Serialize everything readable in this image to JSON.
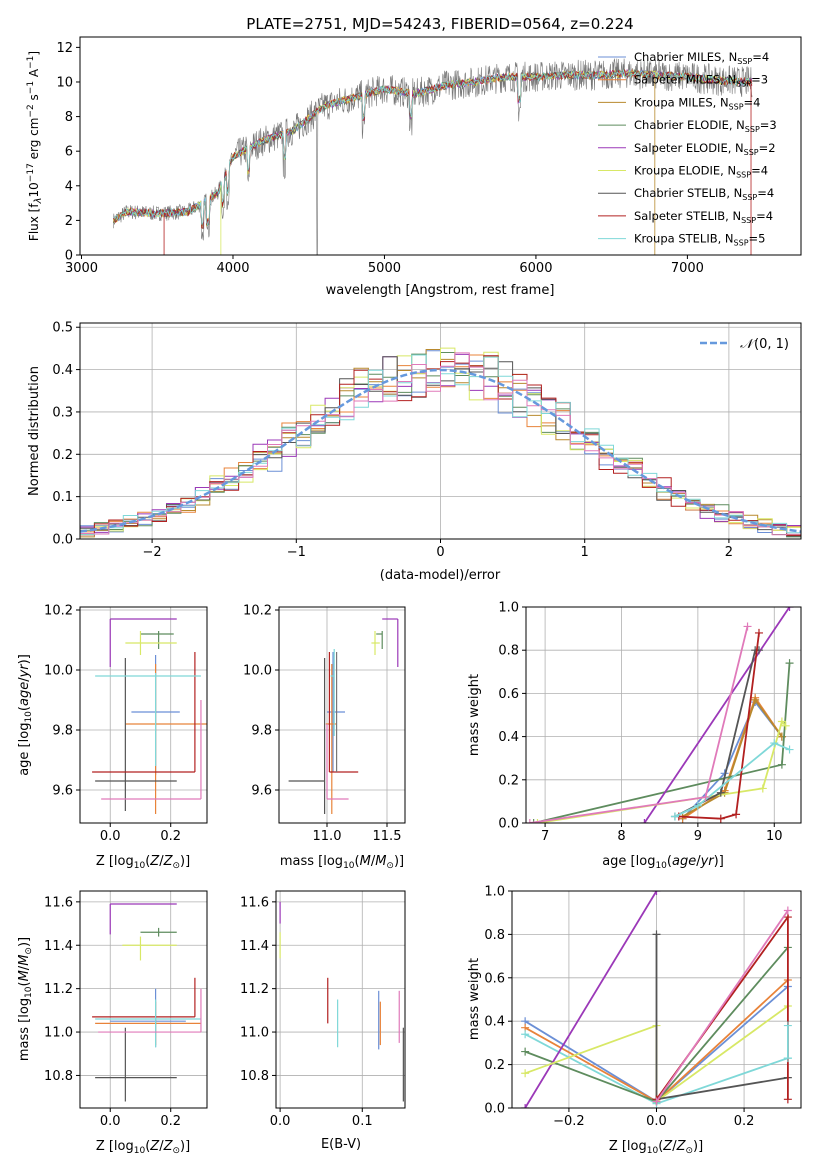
{
  "colors": {
    "chabrier_miles": "#6b8fd6",
    "salpeter_miles": "#e8833a",
    "kroupa_miles": "#b8892e",
    "chabrier_elodie": "#5e8c5e",
    "salpeter_elodie": "#9b38b8",
    "kroupa_elodie": "#d8e866",
    "chabrier_stelib": "#555555",
    "salpeter_stelib": "#b22020",
    "kroupa_stelib": "#7fd8d8",
    "pink": "#e07aba",
    "gray": "#777777",
    "normal": "#6699dd",
    "grid": "#b0b0b0"
  },
  "chart_data": [
    {
      "id": "spectrum",
      "type": "line",
      "title": "PLATE=2751, MJD=54243, FIBERID=0564, z=0.224",
      "xlabel": "wavelength [Angstrom, rest frame]",
      "ylabel": "Flux [f",
      "ylabel_tail": "10",
      "xlim": [
        2990,
        7750
      ],
      "ylim": [
        0,
        12.6
      ],
      "xticks": [
        "3000",
        "4000",
        "5000",
        "6000",
        "7000"
      ],
      "yticks": [
        "0",
        "2",
        "4",
        "6",
        "8",
        "10",
        "12"
      ],
      "legend_position": "upper right",
      "legend": [
        {
          "label": "Chabrier MILES, N",
          "n": "4",
          "color_key": "chabrier_miles"
        },
        {
          "label": "Salpeter MILES, N",
          "n": "3",
          "color_key": "salpeter_miles"
        },
        {
          "label": "Kroupa MILES, N",
          "n": "4",
          "color_key": "kroupa_miles"
        },
        {
          "label": "Chabrier ELODIE, N",
          "n": "3",
          "color_key": "chabrier_elodie"
        },
        {
          "label": "Salpeter ELODIE, N",
          "n": "2",
          "color_key": "salpeter_elodie"
        },
        {
          "label": "Kroupa ELODIE, N",
          "n": "4",
          "color_key": "kroupa_elodie"
        },
        {
          "label": "Chabrier STELIB, N",
          "n": "4",
          "color_key": "chabrier_stelib"
        },
        {
          "label": "Salpeter STELIB, N",
          "n": "4",
          "color_key": "salpeter_stelib"
        },
        {
          "label": "Kroupa STELIB, N",
          "n": "5",
          "color_key": "kroupa_stelib"
        }
      ],
      "continuum": [
        [
          3210,
          2.0
        ],
        [
          3300,
          2.5
        ],
        [
          3500,
          2.4
        ],
        [
          3700,
          2.5
        ],
        [
          3800,
          3.0
        ],
        [
          3900,
          3.6
        ],
        [
          4000,
          5.7
        ],
        [
          4200,
          6.6
        ],
        [
          4400,
          7.2
        ],
        [
          4600,
          8.6
        ],
        [
          4800,
          9.1
        ],
        [
          5000,
          9.6
        ],
        [
          5200,
          9.3
        ],
        [
          5400,
          9.8
        ],
        [
          5600,
          10.0
        ],
        [
          5800,
          10.3
        ],
        [
          6000,
          10.3
        ],
        [
          6200,
          10.4
        ],
        [
          6400,
          10.4
        ],
        [
          6600,
          10.5
        ],
        [
          6800,
          10.4
        ],
        [
          7000,
          10.3
        ],
        [
          7200,
          10.1
        ],
        [
          7400,
          10.0
        ]
      ]
    },
    {
      "id": "residuals",
      "type": "step",
      "xlabel": "(data-model)/error",
      "ylabel": "Normed distribution",
      "xlim": [
        -2.5,
        2.5
      ],
      "ylim": [
        0,
        0.51
      ],
      "xticks": [
        "−2",
        "−1",
        "0",
        "1",
        "2"
      ],
      "yticks": [
        "0.0",
        "0.1",
        "0.2",
        "0.3",
        "0.4",
        "0.5"
      ],
      "legend_label": "N(0,1)",
      "legend_position": "upper right",
      "bin_width": 0.1
    },
    {
      "id": "age_vs_Z",
      "type": "errorbar",
      "xlabel": "Z [log",
      "ylabel": "age  [log",
      "xlim": [
        -0.1,
        0.32
      ],
      "ylim": [
        9.49,
        10.21
      ],
      "xticks": [
        "0.0",
        "0.2"
      ],
      "yticks": [
        "9.6",
        "9.8",
        "10.0",
        "10.2"
      ],
      "points": [
        {
          "x": 0.15,
          "xerr": [
            0.08,
            0.08
          ],
          "y": 9.86,
          "yerr": [
            0.21,
            0.19
          ],
          "c": "chabrier_miles"
        },
        {
          "x": 0.15,
          "xerr": [
            0.1,
            0.17
          ],
          "y": 9.82,
          "yerr": [
            0.3,
            0.2
          ],
          "c": "salpeter_miles"
        },
        {
          "x": 0.15,
          "xerr": [
            0.0,
            0.0
          ],
          "y": 10.1,
          "yerr": [
            0.0,
            0.0
          ],
          "c": "kroupa_miles"
        },
        {
          "x": 0.16,
          "xerr": [
            0.06,
            0.05
          ],
          "y": 10.12,
          "yerr": [
            0.05,
            0.01
          ],
          "c": "chabrier_elodie"
        },
        {
          "x": 0.0,
          "xerr": [
            0.0,
            0.22
          ],
          "y": 10.17,
          "yerr": [
            0.16,
            0.0
          ],
          "c": "salpeter_elodie"
        },
        {
          "x": 0.1,
          "xerr": [
            0.05,
            0.12
          ],
          "y": 10.09,
          "yerr": [
            0.04,
            0.04
          ],
          "c": "kroupa_elodie"
        },
        {
          "x": 0.05,
          "xerr": [
            0.1,
            0.17
          ],
          "y": 9.63,
          "yerr": [
            0.1,
            0.41
          ],
          "c": "chabrier_stelib"
        },
        {
          "x": 0.28,
          "xerr": [
            0.34,
            0.0
          ],
          "y": 9.66,
          "yerr": [
            0.0,
            0.4
          ],
          "c": "salpeter_stelib"
        },
        {
          "x": 0.15,
          "xerr": [
            0.2,
            0.15
          ],
          "y": 9.98,
          "yerr": [
            0.3,
            0.01
          ],
          "c": "kroupa_stelib"
        },
        {
          "x": 0.3,
          "xerr": [
            0.33,
            0.0
          ],
          "y": 9.57,
          "yerr": [
            0.0,
            0.33
          ],
          "c": "pink"
        }
      ]
    },
    {
      "id": "age_vs_mass",
      "type": "errorbar",
      "xlabel": "mass [log",
      "ylabel": "",
      "xlim": [
        10.6,
        11.65
      ],
      "ylim": [
        9.49,
        10.21
      ],
      "xticks": [
        "11.0",
        "11.5"
      ],
      "yticks": [
        "9.6",
        "9.8",
        "10.0",
        "10.2"
      ],
      "points": [
        {
          "x": 11.05,
          "xerr": [
            0.05,
            0.1
          ],
          "y": 9.86,
          "yerr": [
            0.2,
            0.2
          ],
          "c": "chabrier_miles"
        },
        {
          "x": 11.04,
          "xerr": [
            0.05,
            0.04
          ],
          "y": 9.82,
          "yerr": [
            0.3,
            0.2
          ],
          "c": "salpeter_miles"
        },
        {
          "x": 11.06,
          "xerr": [
            0.03,
            0.0
          ],
          "y": 9.98,
          "yerr": [
            0.2,
            0.09
          ],
          "c": "kroupa_stelib"
        },
        {
          "x": 11.46,
          "xerr": [
            0.05,
            0.0
          ],
          "y": 10.12,
          "yerr": [
            0.05,
            0.01
          ],
          "c": "chabrier_elodie"
        },
        {
          "x": 11.59,
          "xerr": [
            0.13,
            0.0
          ],
          "y": 10.17,
          "yerr": [
            0.16,
            0.0
          ],
          "c": "salpeter_elodie"
        },
        {
          "x": 11.4,
          "xerr": [
            0.03,
            0.04
          ],
          "y": 10.09,
          "yerr": [
            0.04,
            0.04
          ],
          "c": "kroupa_elodie"
        },
        {
          "x": 10.98,
          "xerr": [
            0.3,
            0.0
          ],
          "y": 9.63,
          "yerr": [
            0.11,
            0.41
          ],
          "c": "chabrier_stelib"
        },
        {
          "x": 11.02,
          "xerr": [
            0.0,
            0.24
          ],
          "y": 9.66,
          "yerr": [
            0.0,
            0.4
          ],
          "c": "salpeter_stelib"
        },
        {
          "x": 11.0,
          "xerr": [
            0.0,
            0.18
          ],
          "y": 9.57,
          "yerr": [
            0.0,
            0.25
          ],
          "c": "pink"
        },
        {
          "x": 11.08,
          "xerr": [
            0.0,
            0.0
          ],
          "y": 9.86,
          "yerr": [
            0.2,
            0.2
          ],
          "c": "gray"
        }
      ]
    },
    {
      "id": "mass_weight_vs_age",
      "type": "line",
      "xlabel": "age  [log",
      "ylabel": "mass weight",
      "xlim": [
        6.75,
        10.35
      ],
      "ylim": [
        0,
        1.0
      ],
      "xticks": [
        "7",
        "8",
        "9",
        "10"
      ],
      "yticks": [
        "0.0",
        "0.2",
        "0.4",
        "0.6",
        "0.8",
        "1.0"
      ],
      "series": [
        {
          "c": "chabrier_miles",
          "x": [
            8.8,
            9.35,
            9.75,
            10.1
          ],
          "y": [
            0.02,
            0.23,
            0.56,
            0.4
          ]
        },
        {
          "c": "salpeter_miles",
          "x": [
            8.8,
            9.35,
            9.75,
            10.1
          ],
          "y": [
            0.02,
            0.15,
            0.58,
            0.4
          ]
        },
        {
          "c": "kroupa_miles",
          "x": [
            8.8,
            9.35,
            9.75,
            10.1
          ],
          "y": [
            0.03,
            0.14,
            0.57,
            0.4
          ]
        },
        {
          "c": "chabrier_elodie",
          "x": [
            6.85,
            10.1,
            10.2
          ],
          "y": [
            0.0,
            0.27,
            0.74
          ]
        },
        {
          "c": "salpeter_elodie",
          "x": [
            8.3,
            10.2
          ],
          "y": [
            0.0,
            1.0
          ]
        },
        {
          "c": "kroupa_elodie",
          "x": [
            6.9,
            9.85,
            10.1,
            10.15
          ],
          "y": [
            0.0,
            0.16,
            0.47,
            0.45
          ]
        },
        {
          "c": "chabrier_stelib",
          "x": [
            8.7,
            9.3,
            9.75,
            9.8
          ],
          "y": [
            0.03,
            0.14,
            0.8,
            0.8
          ]
        },
        {
          "c": "salpeter_stelib",
          "x": [
            8.75,
            9.3,
            9.5,
            9.8
          ],
          "y": [
            0.03,
            0.02,
            0.04,
            0.88
          ]
        },
        {
          "c": "kroupa_stelib",
          "x": [
            8.7,
            9.0,
            10.0,
            10.2
          ],
          "y": [
            0.03,
            0.08,
            0.37,
            0.34
          ]
        },
        {
          "c": "pink",
          "x": [
            6.8,
            9.1,
            9.65
          ],
          "y": [
            0.0,
            0.12,
            0.91
          ]
        }
      ]
    },
    {
      "id": "mass_vs_Z",
      "type": "errorbar",
      "xlabel": "Z [log",
      "ylabel": "mass [log",
      "xlim": [
        -0.1,
        0.32
      ],
      "ylim": [
        10.65,
        11.65
      ],
      "xticks": [
        "0.0",
        "0.2"
      ],
      "yticks": [
        "10.8",
        "11.0",
        "11.2",
        "11.4",
        "11.6"
      ],
      "points": [
        {
          "x": 0.15,
          "xerr": [
            0.15,
            0.1
          ],
          "y": 11.05,
          "yerr": [
            0.12,
            0.15
          ],
          "c": "chabrier_miles"
        },
        {
          "x": 0.15,
          "xerr": [
            0.2,
            0.15
          ],
          "y": 11.04,
          "yerr": [
            0.1,
            0.1
          ],
          "c": "salpeter_miles"
        },
        {
          "x": 0.16,
          "xerr": [
            0.06,
            0.06
          ],
          "y": 11.46,
          "yerr": [
            0.02,
            0.02
          ],
          "c": "chabrier_elodie"
        },
        {
          "x": 0.0,
          "xerr": [
            0.0,
            0.22
          ],
          "y": 11.59,
          "yerr": [
            0.14,
            0.0
          ],
          "c": "salpeter_elodie"
        },
        {
          "x": 0.1,
          "xerr": [
            0.06,
            0.12
          ],
          "y": 11.4,
          "yerr": [
            0.07,
            0.04
          ],
          "c": "kroupa_elodie"
        },
        {
          "x": 0.05,
          "xerr": [
            0.1,
            0.17
          ],
          "y": 10.79,
          "yerr": [
            0.11,
            0.23
          ],
          "c": "chabrier_stelib"
        },
        {
          "x": 0.28,
          "xerr": [
            0.34,
            0.0
          ],
          "y": 11.07,
          "yerr": [
            0.0,
            0.18
          ],
          "c": "salpeter_stelib"
        },
        {
          "x": 0.15,
          "xerr": [
            0.2,
            0.15
          ],
          "y": 11.06,
          "yerr": [
            0.13,
            0.09
          ],
          "c": "kroupa_stelib"
        },
        {
          "x": 0.3,
          "xerr": [
            0.34,
            0.0
          ],
          "y": 11.0,
          "yerr": [
            0.0,
            0.2
          ],
          "c": "pink"
        }
      ]
    },
    {
      "id": "mass_vs_EBV",
      "type": "errorbar",
      "xlabel": "E(B-V)",
      "ylabel": "",
      "xlim": [
        -0.005,
        0.152
      ],
      "ylim": [
        10.65,
        11.65
      ],
      "xticks": [
        "0.0",
        "0.1"
      ],
      "yticks": [
        "10.8",
        "11.0",
        "11.2",
        "11.4",
        "11.6"
      ],
      "points": [
        {
          "x": 0.0,
          "xerr": [
            0,
            0
          ],
          "y": 11.55,
          "yerr": [
            0.05,
            0.05
          ],
          "c": "salpeter_elodie"
        },
        {
          "x": 0.0,
          "xerr": [
            0,
            0
          ],
          "y": 11.4,
          "yerr": [
            0.06,
            0.06
          ],
          "c": "kroupa_elodie"
        },
        {
          "x": 0.058,
          "xerr": [
            0,
            0
          ],
          "y": 11.15,
          "yerr": [
            0.11,
            0.1
          ],
          "c": "salpeter_stelib"
        },
        {
          "x": 0.07,
          "xerr": [
            0,
            0
          ],
          "y": 11.04,
          "yerr": [
            0.11,
            0.11
          ],
          "c": "kroupa_stelib"
        },
        {
          "x": 0.12,
          "xerr": [
            0,
            0
          ],
          "y": 11.05,
          "yerr": [
            0.13,
            0.14
          ],
          "c": "chabrier_miles"
        },
        {
          "x": 0.122,
          "xerr": [
            0,
            0
          ],
          "y": 11.04,
          "yerr": [
            0.1,
            0.1
          ],
          "c": "salpeter_miles"
        },
        {
          "x": 0.145,
          "xerr": [
            0,
            0
          ],
          "y": 11.07,
          "yerr": [
            0.12,
            0.12
          ],
          "c": "pink"
        },
        {
          "x": 0.15,
          "xerr": [
            0,
            0
          ],
          "y": 10.85,
          "yerr": [
            0.17,
            0.17
          ],
          "c": "chabrier_stelib"
        }
      ]
    },
    {
      "id": "mass_weight_vs_Z",
      "type": "line",
      "xlabel": "Z [log",
      "ylabel": "mass weight",
      "xlim": [
        -0.33,
        0.33
      ],
      "ylim": [
        0,
        1.0
      ],
      "xticks": [
        "−0.2",
        "0.0",
        "0.2"
      ],
      "yticks": [
        "0.0",
        "0.2",
        "0.4",
        "0.6",
        "0.8",
        "1.0"
      ],
      "series": [
        {
          "c": "chabrier_miles",
          "x": [
            -0.3,
            0.0,
            0.3
          ],
          "y": [
            0.4,
            0.03,
            0.56
          ]
        },
        {
          "c": "salpeter_miles",
          "x": [
            -0.3,
            0.0,
            0.3
          ],
          "y": [
            0.37,
            0.03,
            0.59
          ]
        },
        {
          "c": "kroupa_stelib",
          "x": [
            -0.3,
            0.0,
            0.3
          ],
          "y": [
            0.34,
            0.02,
            0.23
          ]
        },
        {
          "c": "chabrier_elodie",
          "x": [
            -0.3,
            0.0,
            0.3
          ],
          "y": [
            0.26,
            0.03,
            0.74
          ]
        },
        {
          "c": "salpeter_elodie",
          "x": [
            -0.3,
            0.0
          ],
          "y": [
            0.0,
            1.0
          ]
        },
        {
          "c": "kroupa_elodie",
          "x": [
            -0.3,
            0.0,
            0.0,
            0.3
          ],
          "y": [
            0.16,
            0.38,
            0.03,
            0.47
          ]
        },
        {
          "c": "chabrier_stelib",
          "x": [
            0.0,
            0.0,
            0.3
          ],
          "y": [
            0.8,
            0.04,
            0.14
          ]
        },
        {
          "c": "salpeter_stelib",
          "x": [
            0.0,
            0.3,
            0.3
          ],
          "y": [
            0.04,
            0.88,
            0.04
          ]
        },
        {
          "c": "pink",
          "x": [
            0.0,
            0.3
          ],
          "y": [
            0.03,
            0.91
          ]
        },
        {
          "c": "kroupa_stelib",
          "x": [
            0.3,
            0.3
          ],
          "y": [
            0.38,
            0.23
          ]
        }
      ]
    }
  ]
}
